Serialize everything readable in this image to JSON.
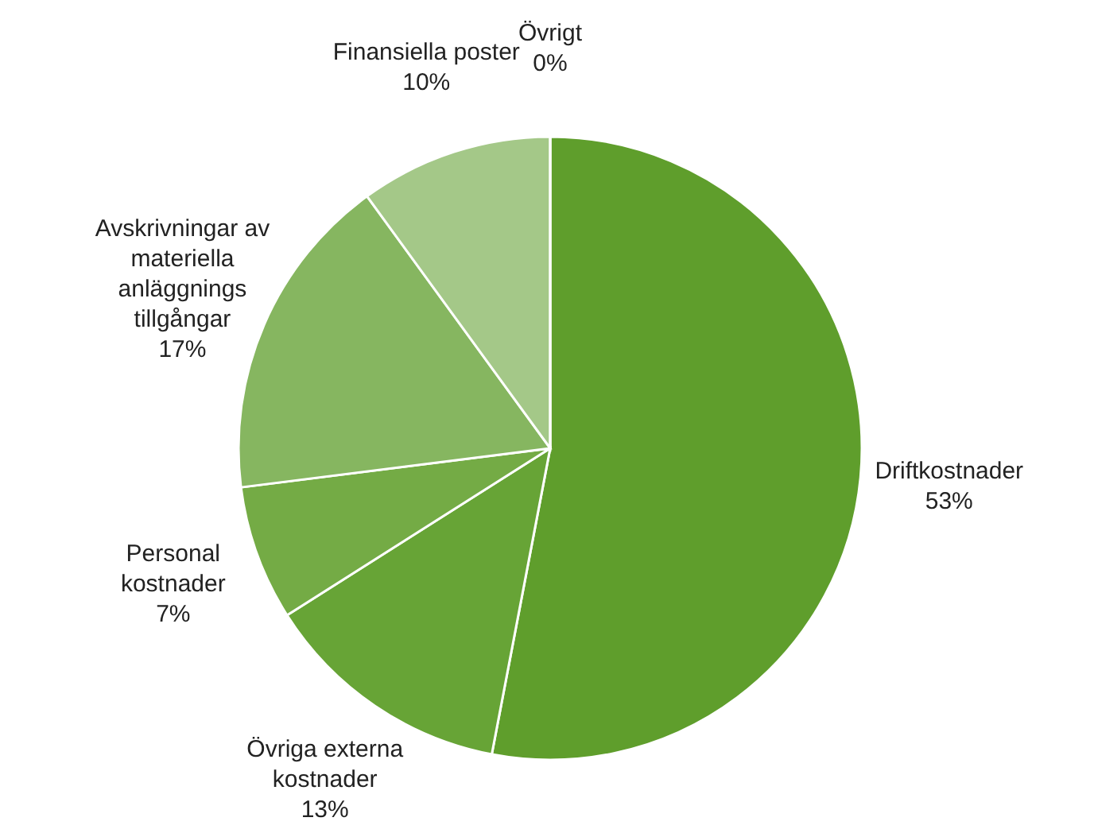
{
  "chart_data": {
    "type": "pie",
    "categories": [
      "Driftkostnader",
      "Övriga externa\nkostnader",
      "Personal\nkostnader",
      "Avskrivningar av\nmateriella\nanläggnings\ntillgångar",
      "Finansiella poster",
      "Övrigt"
    ],
    "values": [
      53,
      13,
      7,
      17,
      10,
      0
    ],
    "value_labels": [
      "53%",
      "13%",
      "7%",
      "17%",
      "10%",
      "0%"
    ],
    "colors": [
      "#5f9e2c",
      "#67a436",
      "#74ab45",
      "#86b660",
      "#a4c888",
      "#c2dbb0"
    ]
  }
}
